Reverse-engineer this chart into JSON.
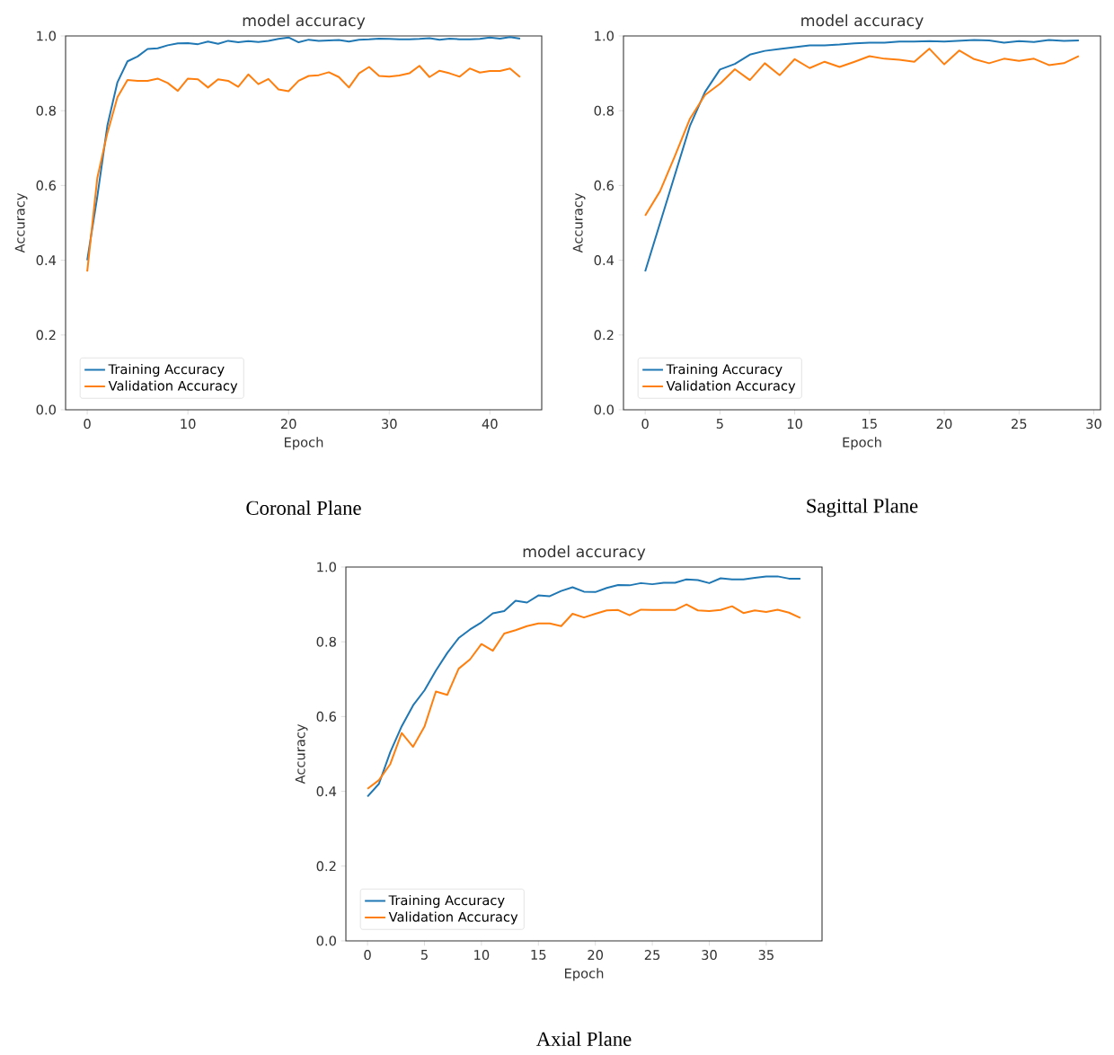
{
  "chart_data": [
    {
      "type": "line",
      "title": "model accuracy",
      "xlabel": "Epoch",
      "ylabel": "Accuracy",
      "annotations": [
        "Coronal Plane"
      ],
      "x": [
        0,
        1,
        2,
        3,
        4,
        5,
        6,
        7,
        8,
        9,
        10,
        11,
        12,
        13,
        14,
        15,
        16,
        17,
        18,
        19,
        20,
        21,
        22,
        23,
        24,
        25,
        26,
        27,
        28,
        29,
        30,
        31,
        32,
        33,
        34,
        35,
        36,
        37,
        38,
        39,
        40,
        41,
        42,
        43
      ],
      "series": [
        {
          "name": "Training Accuracy",
          "color": "#1f77b4",
          "values": [
            0.4,
            0.57,
            0.76,
            0.876,
            0.932,
            0.945,
            0.965,
            0.967,
            0.975,
            0.98,
            0.981,
            0.978,
            0.985,
            0.979,
            0.987,
            0.983,
            0.986,
            0.984,
            0.987,
            0.992,
            0.996,
            0.983,
            0.99,
            0.987,
            0.988,
            0.989,
            0.985,
            0.99,
            0.991,
            0.993,
            0.992,
            0.991,
            0.991,
            0.992,
            0.994,
            0.99,
            0.993,
            0.991,
            0.991,
            0.992,
            0.996,
            0.993,
            0.997,
            0.993
          ]
        },
        {
          "name": "Validation Accuracy",
          "color": "#ff7f0e",
          "values": [
            0.37,
            0.62,
            0.74,
            0.836,
            0.882,
            0.88,
            0.88,
            0.886,
            0.874,
            0.853,
            0.886,
            0.884,
            0.862,
            0.884,
            0.88,
            0.864,
            0.897,
            0.871,
            0.885,
            0.857,
            0.852,
            0.88,
            0.893,
            0.895,
            0.903,
            0.89,
            0.862,
            0.9,
            0.917,
            0.893,
            0.891,
            0.894,
            0.9,
            0.92,
            0.89,
            0.907,
            0.9,
            0.891,
            0.913,
            0.902,
            0.906,
            0.906,
            0.913,
            0.89
          ]
        }
      ],
      "xlim": [
        -2.15,
        45.15
      ],
      "ylim": [
        0,
        1
      ],
      "xticks": [
        0,
        10,
        20,
        30,
        40
      ],
      "yticks": [
        {
          "value": 0,
          "label": "0.0"
        },
        {
          "value": 0.2,
          "label": "0.2"
        },
        {
          "value": 0.4,
          "label": "0.4"
        },
        {
          "value": 0.6,
          "label": "0.6"
        },
        {
          "value": 0.8,
          "label": "0.8"
        },
        {
          "value": 1,
          "label": "1.0"
        }
      ],
      "legend": "bottom left",
      "line_style": "solid"
    },
    {
      "type": "line",
      "title": "model accuracy",
      "xlabel": "Epoch",
      "ylabel": "Accuracy",
      "annotations": [
        "Sagittal Plane"
      ],
      "x": [
        0,
        1,
        2,
        3,
        4,
        5,
        6,
        7,
        8,
        9,
        10,
        11,
        12,
        13,
        14,
        15,
        16,
        17,
        18,
        19,
        20,
        21,
        22,
        23,
        24,
        25,
        26,
        27,
        28,
        29
      ],
      "series": [
        {
          "name": "Training Accuracy",
          "color": "#1f77b4",
          "values": [
            0.37,
            0.5,
            0.63,
            0.76,
            0.85,
            0.91,
            0.925,
            0.95,
            0.96,
            0.965,
            0.97,
            0.975,
            0.975,
            0.977,
            0.98,
            0.982,
            0.982,
            0.985,
            0.985,
            0.986,
            0.985,
            0.987,
            0.989,
            0.988,
            0.982,
            0.986,
            0.984,
            0.989,
            0.987,
            0.988
          ]
        },
        {
          "name": "Validation Accuracy",
          "color": "#ff7f0e",
          "values": [
            0.519,
            0.585,
            0.68,
            0.779,
            0.842,
            0.872,
            0.911,
            0.882,
            0.927,
            0.895,
            0.938,
            0.914,
            0.931,
            0.917,
            0.931,
            0.946,
            0.939,
            0.936,
            0.931,
            0.966,
            0.924,
            0.961,
            0.938,
            0.927,
            0.939,
            0.933,
            0.939,
            0.922,
            0.927,
            0.946
          ]
        }
      ],
      "xlim": [
        -1.45,
        30.45
      ],
      "ylim": [
        0,
        1
      ],
      "xticks": [
        0,
        5,
        10,
        15,
        20,
        25,
        30
      ],
      "yticks": [
        {
          "value": 0,
          "label": "0.0"
        },
        {
          "value": 0.2,
          "label": "0.2"
        },
        {
          "value": 0.4,
          "label": "0.4"
        },
        {
          "value": 0.6,
          "label": "0.6"
        },
        {
          "value": 0.8,
          "label": "0.8"
        },
        {
          "value": 1,
          "label": "1.0"
        }
      ],
      "legend": "bottom left",
      "line_style": "solid"
    },
    {
      "type": "line",
      "title": "model accuracy",
      "xlabel": "Epoch",
      "ylabel": "Accuracy",
      "annotations": [
        "Axial Plane"
      ],
      "x": [
        0,
        1,
        2,
        3,
        4,
        5,
        6,
        7,
        8,
        9,
        10,
        11,
        12,
        13,
        14,
        15,
        16,
        17,
        18,
        19,
        20,
        21,
        22,
        23,
        24,
        25,
        26,
        27,
        28,
        29,
        30,
        31,
        32,
        33,
        34,
        35,
        36,
        37,
        38
      ],
      "series": [
        {
          "name": "Training Accuracy",
          "color": "#1f77b4",
          "values": [
            0.386,
            0.42,
            0.505,
            0.574,
            0.63,
            0.67,
            0.723,
            0.77,
            0.81,
            0.833,
            0.852,
            0.876,
            0.882,
            0.91,
            0.905,
            0.924,
            0.922,
            0.936,
            0.946,
            0.934,
            0.933,
            0.944,
            0.952,
            0.951,
            0.957,
            0.954,
            0.958,
            0.958,
            0.967,
            0.965,
            0.957,
            0.97,
            0.967,
            0.967,
            0.971,
            0.975,
            0.975,
            0.969,
            0.969
          ]
        },
        {
          "name": "Validation Accuracy",
          "color": "#ff7f0e",
          "values": [
            0.407,
            0.43,
            0.473,
            0.556,
            0.519,
            0.573,
            0.667,
            0.658,
            0.728,
            0.753,
            0.794,
            0.776,
            0.822,
            0.831,
            0.842,
            0.849,
            0.849,
            0.842,
            0.875,
            0.865,
            0.875,
            0.884,
            0.885,
            0.871,
            0.886,
            0.885,
            0.885,
            0.885,
            0.9,
            0.884,
            0.882,
            0.885,
            0.895,
            0.877,
            0.884,
            0.88,
            0.886,
            0.878,
            0.864
          ]
        }
      ],
      "xlim": [
        -1.9,
        39.9
      ],
      "ylim": [
        0,
        1
      ],
      "xticks": [
        0,
        5,
        10,
        15,
        20,
        25,
        30,
        35
      ],
      "yticks": [
        {
          "value": 0,
          "label": "0.0"
        },
        {
          "value": 0.2,
          "label": "0.2"
        },
        {
          "value": 0.4,
          "label": "0.4"
        },
        {
          "value": 0.6,
          "label": "0.6"
        },
        {
          "value": 0.8,
          "label": "0.8"
        },
        {
          "value": 1,
          "label": "1.0"
        }
      ],
      "legend": "bottom left",
      "line_style": "solid"
    }
  ]
}
